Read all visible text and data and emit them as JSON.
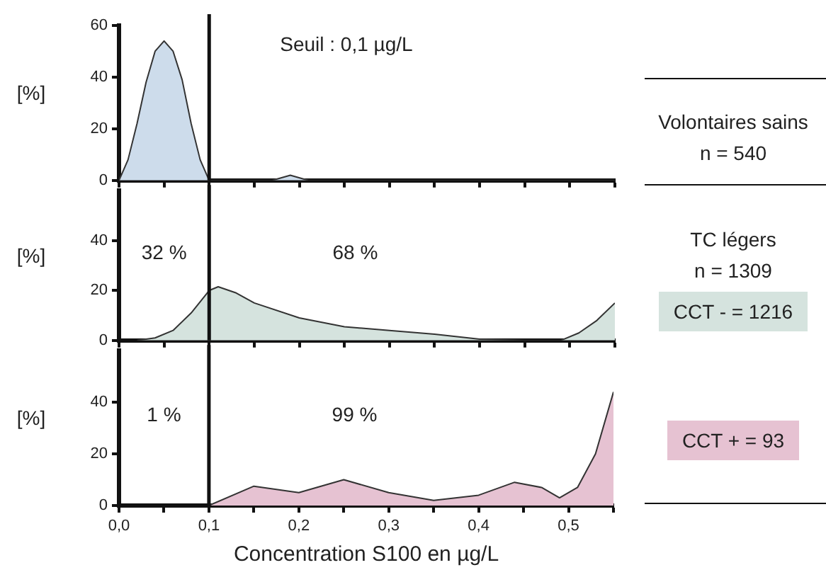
{
  "chart_data": [
    {
      "type": "area",
      "ylabel": "[%]",
      "xlim": [
        0,
        0.55
      ],
      "ylim": [
        0,
        60
      ],
      "yticks": [
        0,
        20,
        40,
        60
      ],
      "xticks": [
        0,
        0.05,
        0.1,
        0.15,
        0.2,
        0.25,
        0.3,
        0.35,
        0.4,
        0.45,
        0.5,
        0.55
      ],
      "tick_labels": "y",
      "grid": false,
      "legend": false,
      "series": [
        {
          "color": "#cddceb",
          "x": [
            0,
            0.01,
            0.02,
            0.03,
            0.04,
            0.05,
            0.06,
            0.07,
            0.08,
            0.09,
            0.1,
            0.17,
            0.19,
            0.21,
            0.55
          ],
          "values": [
            0,
            8,
            22,
            38,
            50,
            54,
            50,
            39,
            22,
            8,
            0,
            0,
            2,
            0,
            0
          ]
        }
      ],
      "ref_lines": [
        {
          "axis": "x",
          "value": 0.1,
          "label": "Seuil : 0,1 µg/L"
        }
      ],
      "annotations": [
        "Volontaires sains",
        "n = 540"
      ]
    },
    {
      "type": "area",
      "ylabel": "[%]",
      "xlim": [
        0,
        0.55
      ],
      "ylim": [
        0,
        60
      ],
      "yticks": [
        0,
        20,
        40
      ],
      "xticks": [
        0,
        0.05,
        0.1,
        0.15,
        0.2,
        0.25,
        0.3,
        0.35,
        0.4,
        0.45,
        0.5,
        0.55
      ],
      "tick_labels": "y",
      "grid": false,
      "legend": "right",
      "series": [
        {
          "name": "CCT - = 1216",
          "color": "#d5e3de",
          "x": [
            0.02,
            0.04,
            0.06,
            0.08,
            0.1,
            0.11,
            0.13,
            0.15,
            0.2,
            0.25,
            0.3,
            0.35,
            0.4,
            0.45,
            0.49,
            0.51,
            0.53,
            0.55
          ],
          "values": [
            0,
            1,
            4,
            11,
            20,
            21.5,
            19,
            15,
            9,
            5.5,
            4,
            2.5,
            0.5,
            0,
            0,
            3,
            8,
            15
          ]
        }
      ],
      "ref_lines": [
        {
          "axis": "x",
          "value": 0.1
        }
      ],
      "annotations": [
        "32 %",
        "68 %",
        "TC légers",
        "n = 1309"
      ]
    },
    {
      "type": "area",
      "ylabel": "[%]",
      "xlabel": "Concentration S100 en µg/L",
      "xlim": [
        0,
        0.55
      ],
      "ylim": [
        0,
        60
      ],
      "yticks": [
        0,
        20,
        40
      ],
      "xticks": [
        {
          "value": 0,
          "label": "0,0"
        },
        {
          "value": 0.05,
          "label": null
        },
        {
          "value": 0.1,
          "label": "0,1"
        },
        {
          "value": 0.15,
          "label": null
        },
        {
          "value": 0.2,
          "label": "0,2"
        },
        {
          "value": 0.25,
          "label": null
        },
        {
          "value": 0.3,
          "label": "0,3"
        },
        {
          "value": 0.35,
          "label": null
        },
        {
          "value": 0.4,
          "label": "0,4"
        },
        {
          "value": 0.45,
          "label": null
        },
        {
          "value": 0.5,
          "label": "0,5"
        },
        {
          "value": 0.55,
          "label": null
        }
      ],
      "grid": false,
      "legend": "right",
      "series": [
        {
          "name": "CCT + = 93",
          "color": "#e6c2d2",
          "x": [
            0.1,
            0.15,
            0.2,
            0.25,
            0.3,
            0.35,
            0.4,
            0.44,
            0.47,
            0.49,
            0.51,
            0.53,
            0.55
          ],
          "values": [
            0,
            7.5,
            5,
            10,
            5,
            2,
            4,
            9,
            7,
            3,
            7,
            20,
            44
          ]
        }
      ],
      "ref_lines": [
        {
          "axis": "x",
          "value": 0.1
        }
      ],
      "annotations": [
        "1 %",
        "99 %"
      ]
    }
  ]
}
